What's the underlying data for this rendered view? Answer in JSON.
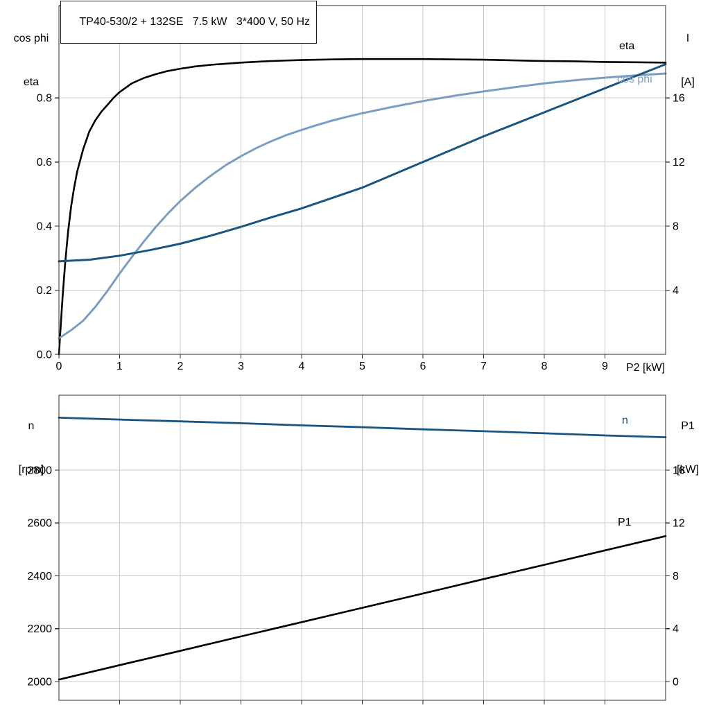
{
  "chart_data": [
    {
      "type": "line",
      "title": "TP40-530/2 + 132SE   7.5 kW   3*400 V, 50 Hz",
      "x_axis": {
        "label": "P2 [kW]",
        "min": 0,
        "max": 10,
        "tick_values": [
          0,
          1,
          2,
          3,
          4,
          5,
          6,
          7,
          8,
          9
        ],
        "tick_labels": [
          "0",
          "1",
          "2",
          "3",
          "4",
          "5",
          "6",
          "7",
          "8",
          "9"
        ],
        "grid": [
          1,
          2,
          3,
          4,
          5,
          6,
          7,
          8,
          9
        ]
      },
      "left_axis": {
        "title_lines": [
          "cos phi",
          "eta"
        ],
        "min": 0,
        "max": 1.088,
        "tick_values": [
          0,
          0.2,
          0.4,
          0.6,
          0.8
        ],
        "tick_labels": [
          "0.0",
          "0.2",
          "0.4",
          "0.6",
          "0.8"
        ]
      },
      "right_axis": {
        "title_lines": [
          "I",
          "[A]"
        ],
        "min": 0,
        "max": 21.76,
        "tick_values": [
          4,
          8,
          12,
          16
        ],
        "tick_labels": [
          "4",
          "8",
          "12",
          "16"
        ]
      },
      "series": [
        {
          "name": "eta",
          "axis": "left",
          "color": "#000000",
          "width": 2.6,
          "x": [
            0,
            0.03,
            0.06,
            0.1,
            0.15,
            0.2,
            0.25,
            0.3,
            0.4,
            0.5,
            0.6,
            0.7,
            0.8,
            0.9,
            1,
            1.2,
            1.4,
            1.6,
            1.8,
            2,
            2.25,
            2.5,
            3,
            3.5,
            4,
            4.5,
            5,
            5.5,
            6,
            6.5,
            7,
            7.5,
            8,
            8.5,
            9,
            9.5,
            10
          ],
          "y": [
            0,
            0.09,
            0.18,
            0.28,
            0.38,
            0.46,
            0.52,
            0.57,
            0.64,
            0.695,
            0.73,
            0.757,
            0.778,
            0.8,
            0.818,
            0.845,
            0.862,
            0.874,
            0.884,
            0.891,
            0.898,
            0.903,
            0.91,
            0.915,
            0.918,
            0.92,
            0.921,
            0.921,
            0.921,
            0.92,
            0.919,
            0.917,
            0.915,
            0.914,
            0.912,
            0.911,
            0.91
          ]
        },
        {
          "name": "cos phi",
          "axis": "left",
          "color": "#7b9dc1",
          "width": 3,
          "x": [
            0,
            0.2,
            0.4,
            0.6,
            0.8,
            1,
            1.2,
            1.4,
            1.6,
            1.8,
            2,
            2.25,
            2.5,
            2.75,
            3,
            3.25,
            3.5,
            3.75,
            4,
            4.25,
            4.5,
            4.75,
            5,
            5.5,
            6,
            6.5,
            7,
            7.5,
            8,
            8.5,
            9,
            9.5,
            10
          ],
          "y": [
            0.05,
            0.075,
            0.105,
            0.148,
            0.198,
            0.252,
            0.303,
            0.352,
            0.398,
            0.44,
            0.478,
            0.52,
            0.557,
            0.59,
            0.618,
            0.643,
            0.665,
            0.684,
            0.7,
            0.715,
            0.729,
            0.741,
            0.752,
            0.772,
            0.79,
            0.806,
            0.82,
            0.833,
            0.845,
            0.855,
            0.863,
            0.87,
            0.876
          ]
        },
        {
          "name": "I",
          "axis": "right",
          "color": "#1a5480",
          "width": 3,
          "x": [
            0,
            0.5,
            1,
            1.5,
            2,
            2.5,
            3,
            3.5,
            4,
            4.5,
            5,
            5.5,
            6,
            6.5,
            7,
            7.5,
            8,
            8.5,
            9,
            9.5,
            10
          ],
          "y": [
            5.8,
            5.9,
            6.15,
            6.5,
            6.9,
            7.4,
            7.95,
            8.55,
            9.1,
            9.75,
            10.4,
            11.2,
            12,
            12.8,
            13.6,
            14.35,
            15.1,
            15.85,
            16.6,
            17.35,
            18.1
          ]
        }
      ]
    },
    {
      "type": "line",
      "x_axis": {
        "min": 0,
        "max": 10,
        "tick_values": [
          1,
          2,
          3,
          4,
          5,
          6,
          7,
          8,
          9
        ],
        "tick_labels": null,
        "grid": [
          1,
          2,
          3,
          4,
          5,
          6,
          7,
          8,
          9
        ]
      },
      "left_axis": {
        "title_lines": [
          "n",
          "[rpm]"
        ],
        "min": 1929,
        "max": 3083,
        "tick_values": [
          2000,
          2200,
          2400,
          2600,
          2800
        ],
        "tick_labels": [
          "2000",
          "2200",
          "2400",
          "2600",
          "2800"
        ]
      },
      "right_axis": {
        "title_lines": [
          "P1",
          "[kW]"
        ],
        "min": -1.42,
        "max": 21.66,
        "tick_values": [
          0,
          4,
          8,
          12,
          16
        ],
        "tick_labels": [
          "0",
          "4",
          "8",
          "12",
          "16"
        ]
      },
      "series": [
        {
          "name": "n",
          "axis": "left",
          "color": "#1a5480",
          "width": 2.8,
          "x": [
            0,
            1,
            2,
            3,
            4,
            5,
            6,
            7,
            8,
            9,
            10
          ],
          "y": [
            2998,
            2991,
            2984,
            2977,
            2969,
            2962,
            2954,
            2947,
            2939,
            2931,
            2924
          ]
        },
        {
          "name": "P1",
          "axis": "right",
          "color": "#000000",
          "width": 2.6,
          "x": [
            0,
            1,
            2,
            3,
            4,
            5,
            6,
            7,
            8,
            9,
            10
          ],
          "y": [
            0.15,
            1.24,
            2.32,
            3.41,
            4.49,
            5.58,
            6.66,
            7.75,
            8.83,
            9.92,
            11.0
          ]
        }
      ]
    }
  ],
  "colors": {
    "curve_black": "#000000",
    "curve_dark_blue": "#1a5480",
    "curve_light_blue": "#7b9dc1",
    "grid": "#c9c9c9",
    "frame": "#2b2b2b"
  }
}
